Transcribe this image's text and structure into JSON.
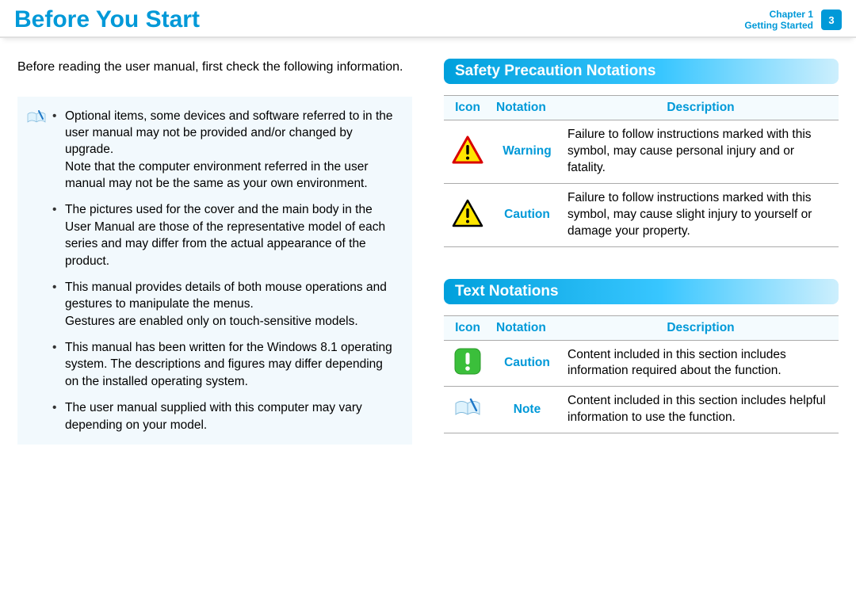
{
  "header": {
    "title": "Before You Start",
    "chapter_line1": "Chapter 1",
    "chapter_line2": "Getting Started",
    "page_number": "3",
    "accent_color": "#0099d8"
  },
  "left": {
    "intro": "Before reading the user manual, first check the following information.",
    "info_items": [
      "Optional items, some devices and software referred to in the user manual may not be provided and/or changed by upgrade.\nNote that the computer environment referred in the user manual may not be the same as your own environment.",
      "The pictures used for the cover and the main body in the User Manual are those of the representative model of each series and may differ from the actual appearance of the product.",
      "This manual provides details of both mouse operations and gestures to manipulate the menus.\nGestures are enabled only on touch-sensitive models.",
      "This manual has been written for the Windows 8.1 operating system. The descriptions and figures may differ depending on the installed operating system.",
      "The user manual supplied with this computer may vary depending on your model."
    ]
  },
  "safety": {
    "heading": "Safety Precaution Notations",
    "columns": {
      "icon": "Icon",
      "notation": "Notation",
      "description": "Description"
    },
    "rows": [
      {
        "icon_name": "warning-triangle-icon",
        "icon_colors": {
          "border": "#d90000",
          "fill": "#ffe600",
          "mark": "#000000"
        },
        "notation": "Warning",
        "description": "Failure to follow instructions marked with this symbol, may cause personal injury and or fatality."
      },
      {
        "icon_name": "caution-triangle-icon",
        "icon_colors": {
          "border": "#000000",
          "fill": "#ffe600",
          "mark": "#000000"
        },
        "notation": "Caution",
        "description": "Failure to follow instructions marked with this symbol, may cause slight injury to yourself or damage your property."
      }
    ]
  },
  "text_notations": {
    "heading": "Text Notations",
    "columns": {
      "icon": "Icon",
      "notation": "Notation",
      "description": "Description"
    },
    "rows": [
      {
        "icon_name": "caution-square-icon",
        "icon_colors": {
          "fill": "#3bbf3b",
          "mark": "#ffffff"
        },
        "notation": "Caution",
        "description": "Content included in this section includes information required about the function."
      },
      {
        "icon_name": "note-book-icon",
        "icon_colors": {
          "book": "#bfeaff",
          "pen": "#1e78c8"
        },
        "notation": "Note",
        "description": "Content included in this section includes helpful information to use the function."
      }
    ]
  },
  "style": {
    "info_box_bg": "#f2f9fd",
    "heading_gradient_from": "#00a0dc",
    "heading_gradient_to": "#cdeffd",
    "table_border": "#aaaaaa"
  }
}
